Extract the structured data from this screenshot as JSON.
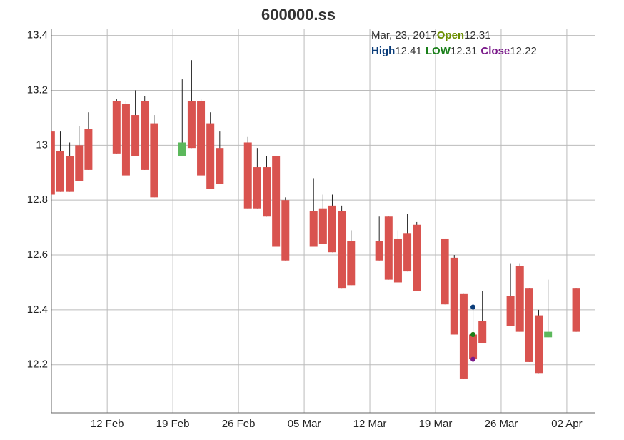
{
  "chart_data": {
    "type": "candlestick",
    "title": "600000.ss",
    "x": [
      37,
      38,
      39,
      40,
      41,
      44,
      45,
      46,
      47,
      48,
      51,
      52,
      53,
      54,
      55,
      58,
      59,
      60,
      61,
      62,
      65,
      66,
      67,
      68,
      69,
      72,
      73,
      74,
      75,
      76,
      79,
      80,
      81,
      82,
      83,
      86,
      87,
      88,
      89,
      90,
      93
    ],
    "series": [
      {
        "name": "Open",
        "values": [
          13.05,
          12.98,
          12.96,
          13.0,
          13.06,
          13.16,
          13.15,
          13.11,
          13.16,
          13.08,
          12.96,
          13.16,
          13.16,
          13.08,
          12.99,
          13.01,
          12.92,
          12.92,
          12.96,
          12.8,
          12.76,
          12.77,
          12.78,
          12.76,
          12.65,
          12.65,
          12.74,
          12.66,
          12.68,
          12.71,
          12.66,
          12.59,
          12.46,
          12.31,
          12.36,
          12.45,
          12.56,
          12.48,
          12.38,
          12.3,
          12.48
        ]
      },
      {
        "name": "High",
        "values": [
          13.14,
          13.05,
          13.01,
          13.07,
          13.12,
          13.17,
          13.16,
          13.2,
          13.18,
          13.11,
          13.24,
          13.31,
          13.17,
          13.12,
          13.05,
          13.03,
          12.99,
          12.96,
          12.96,
          12.81,
          12.88,
          12.82,
          12.82,
          12.78,
          12.69,
          12.74,
          12.74,
          12.69,
          12.75,
          12.72,
          12.66,
          12.6,
          12.46,
          12.41,
          12.47,
          12.57,
          12.57,
          12.48,
          12.4,
          12.51,
          12.48
        ]
      },
      {
        "name": "LOW",
        "values": [
          12.82,
          12.83,
          12.83,
          12.87,
          12.91,
          12.97,
          12.89,
          12.96,
          12.91,
          12.81,
          12.96,
          12.99,
          12.89,
          12.84,
          12.86,
          12.77,
          12.77,
          12.74,
          12.63,
          12.58,
          12.63,
          12.64,
          12.61,
          12.48,
          12.49,
          12.58,
          12.51,
          12.5,
          12.54,
          12.47,
          12.42,
          12.31,
          12.15,
          12.31,
          12.28,
          12.34,
          12.32,
          12.21,
          12.17,
          12.3,
          12.32
        ]
      },
      {
        "name": "Close",
        "values": [
          12.82,
          12.83,
          12.83,
          12.87,
          12.91,
          12.97,
          12.89,
          12.96,
          12.91,
          12.81,
          13.01,
          12.99,
          12.89,
          12.84,
          12.86,
          12.77,
          12.77,
          12.74,
          12.63,
          12.58,
          12.63,
          12.64,
          12.61,
          12.48,
          12.49,
          12.58,
          12.51,
          12.5,
          12.54,
          12.47,
          12.42,
          12.31,
          12.15,
          12.22,
          12.28,
          12.34,
          12.32,
          12.21,
          12.17,
          12.32,
          12.32
        ]
      }
    ],
    "up_color": "#5cb85c",
    "down_color": "#d9534f",
    "wick_color": "#222222",
    "xlim": [
      37.05,
      95.05
    ],
    "xticks": [
      {
        "value": 43,
        "label": "12 Feb"
      },
      {
        "value": 50,
        "label": "19 Feb"
      },
      {
        "value": 57,
        "label": "26 Feb"
      },
      {
        "value": 64,
        "label": "05 Mar"
      },
      {
        "value": 71,
        "label": "12 Mar"
      },
      {
        "value": 78,
        "label": "19 Mar"
      },
      {
        "value": 85,
        "label": "26 Mar"
      },
      {
        "value": 92,
        "label": "02 Apr"
      }
    ],
    "ylim": [
      12.025,
      13.425
    ],
    "yticks": [
      {
        "value": 12.2,
        "label": "12.2"
      },
      {
        "value": 12.4,
        "label": "12.4"
      },
      {
        "value": 12.6,
        "label": "12.6"
      },
      {
        "value": 12.8,
        "label": "12.8"
      },
      {
        "value": 13,
        "label": "13"
      },
      {
        "value": 13.2,
        "label": "13.2"
      },
      {
        "value": 13.4,
        "label": "13.4"
      }
    ],
    "grid": true,
    "tooltip": {
      "date": "Mar, 23, 2017",
      "index": 33,
      "colors": {
        "Open": "#6b8e00",
        "High": "#0b3d7a",
        "LOW": "#1a7f1a",
        "Close": "#7a1a8a"
      }
    }
  }
}
